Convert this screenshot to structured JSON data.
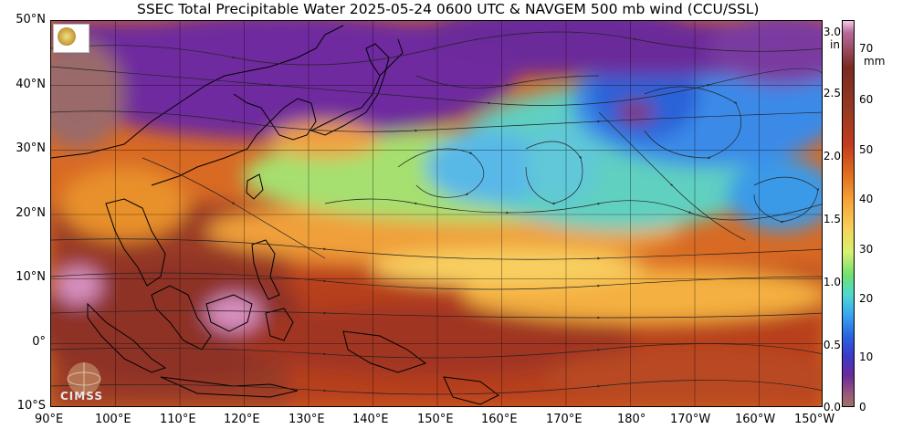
{
  "title": "SSEC Total Precipitable Water  2025-05-24 0600 UTC & NAVGEM 500 mb wind (CCU/SSL)",
  "map": {
    "lat_labels": [
      "50°N",
      "40°N",
      "30°N",
      "20°N",
      "10°N",
      "0°",
      "10°S"
    ],
    "lon_labels": [
      "90°E",
      "100°E",
      "110°E",
      "120°E",
      "130°E",
      "140°E",
      "150°E",
      "160°E",
      "170°E",
      "180°",
      "170°W",
      "160°W",
      "150°W"
    ],
    "extent": {
      "lon_min": 90,
      "lon_max": 210,
      "lat_min": -10,
      "lat_max": 50
    }
  },
  "colorbar": {
    "inch_unit": "in",
    "mm_unit": "mm",
    "inch_ticks": [
      "3.0",
      "2.5",
      "2.0",
      "1.5",
      "1.0",
      "0.5",
      "0.0"
    ],
    "mm_ticks": [
      "70",
      "60",
      "50",
      "40",
      "30",
      "20",
      "10",
      "0"
    ]
  },
  "logos": {
    "top_left": "ssec-logo",
    "bottom_left": "CIMSS"
  },
  "colors": {
    "frame": "#000000",
    "background": "#ffffff"
  }
}
